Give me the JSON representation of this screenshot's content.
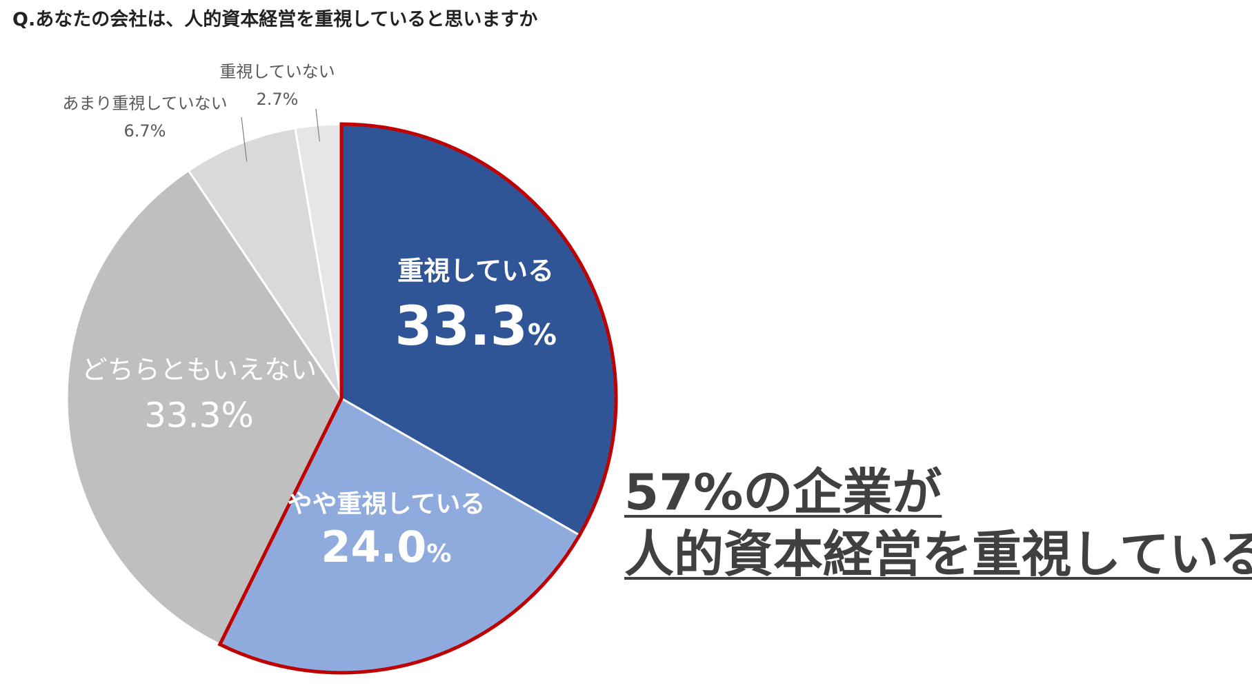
{
  "title": "Q.あなたの会社は、人的資本経営を重視していると思いますか",
  "callout": {
    "line1": "57%の企業が",
    "line2": "人的資本経営を重視している"
  },
  "colors": {
    "highlight_border": "#c00000",
    "callout_text": "#404040"
  },
  "chart_data": {
    "type": "pie",
    "unit": "%",
    "slices": [
      {
        "label": "重視している",
        "value": 33.3,
        "value_text": "33.3",
        "color": "#2f5597",
        "label_color": "#ffffff",
        "highlight": true
      },
      {
        "label": "やや重視している",
        "value": 24.0,
        "value_text": "24.0",
        "color": "#8faadc",
        "label_color": "#ffffff",
        "highlight": true
      },
      {
        "label": "どちらともいえない",
        "value": 33.3,
        "value_text": "33.3",
        "color": "#bfbfbf",
        "label_color": "#ffffff",
        "highlight": false
      },
      {
        "label": "あまり重視していない",
        "value": 6.7,
        "value_text": "6.7",
        "color": "#d9d9d9",
        "label_color": "#595959",
        "highlight": false
      },
      {
        "label": "重視していない",
        "value": 2.7,
        "value_text": "2.7",
        "color": "#e7e6e6",
        "label_color": "#595959",
        "highlight": false
      }
    ],
    "start_angle": "12 o'clock",
    "direction": "clockwise"
  }
}
